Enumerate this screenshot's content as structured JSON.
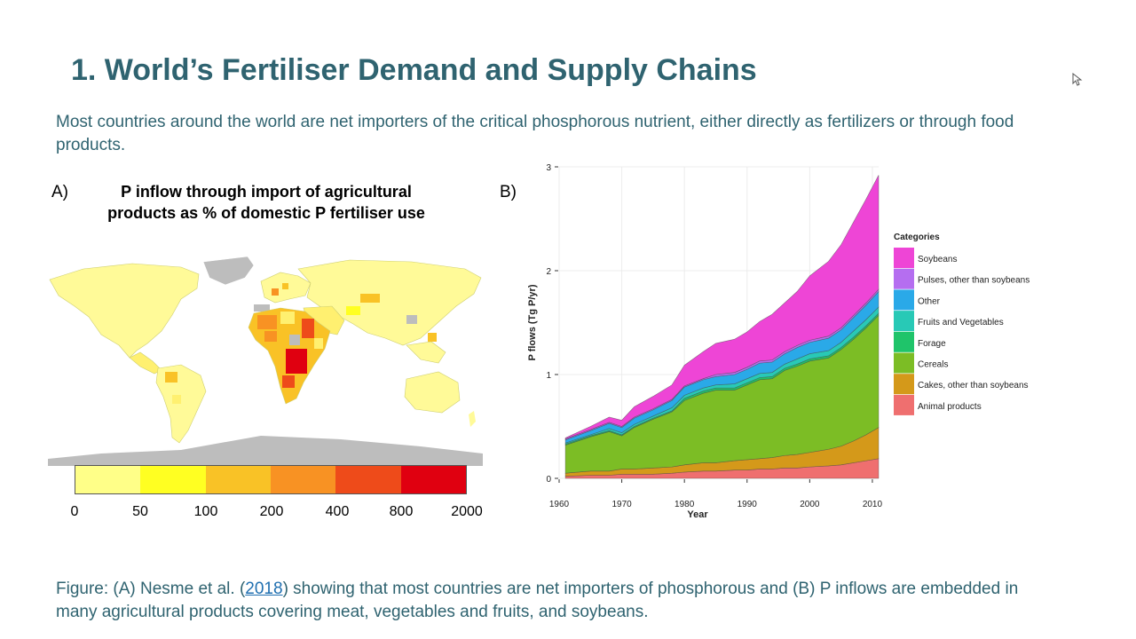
{
  "slide": {
    "title": "1. World’s Fertiliser Demand and Supply Chains",
    "intro": "Most countries around the world are net importers of the critical phosphorous nutrient, either directly as fertilizers or through food products.",
    "caption_pre": "Figure: (A) Nesme et al. (",
    "caption_link": "2018",
    "caption_post": ") showing that most countries are net importers of phosphorous and (B) P inflows are embedded in many agricultural products covering meat, vegetables and fruits, and soybeans."
  },
  "panel_a": {
    "label": "A)",
    "title_line1": "P inflow through import of agricultural",
    "title_line2": "products as % of domestic P fertiliser use",
    "legend_ticks": [
      "0",
      "50",
      "100",
      "200",
      "400",
      "800",
      "2000"
    ],
    "legend_colors": [
      "#ffff88",
      "#ffff22",
      "#f9c226",
      "#f89223",
      "#ee4b1a",
      "#e00010"
    ]
  },
  "panel_b": {
    "label": "B)"
  },
  "chart_data": {
    "type": "area",
    "stacked": true,
    "xlabel": "Year",
    "ylabel": "P flows (Tg P/yr)",
    "xlim": [
      1960,
      2011
    ],
    "ylim": [
      0,
      3
    ],
    "x_ticks": [
      "1960",
      "1970",
      "1980",
      "1990",
      "2000",
      "2010"
    ],
    "y_ticks": [
      "0",
      "1",
      "2",
      "3"
    ],
    "legend_title": "Categories",
    "legend_position": "right",
    "x": [
      1961,
      1965,
      1968,
      1970,
      1972,
      1975,
      1978,
      1980,
      1983,
      1985,
      1988,
      1990,
      1992,
      1994,
      1996,
      1998,
      2000,
      2003,
      2005,
      2007,
      2009,
      2011
    ],
    "series": [
      {
        "name": "Animal products",
        "color": "#ef6f6f",
        "values": [
          0.02,
          0.03,
          0.03,
          0.04,
          0.04,
          0.04,
          0.05,
          0.06,
          0.07,
          0.07,
          0.08,
          0.08,
          0.09,
          0.09,
          0.1,
          0.1,
          0.11,
          0.12,
          0.13,
          0.15,
          0.17,
          0.19
        ]
      },
      {
        "name": "Cakes, other than soybeans",
        "color": "#d4991a",
        "values": [
          0.03,
          0.04,
          0.04,
          0.05,
          0.05,
          0.06,
          0.06,
          0.07,
          0.08,
          0.08,
          0.09,
          0.1,
          0.1,
          0.11,
          0.12,
          0.13,
          0.14,
          0.16,
          0.18,
          0.21,
          0.25,
          0.3
        ]
      },
      {
        "name": "Cereals",
        "color": "#7cbd25",
        "values": [
          0.27,
          0.33,
          0.38,
          0.32,
          0.4,
          0.47,
          0.53,
          0.62,
          0.67,
          0.7,
          0.68,
          0.72,
          0.76,
          0.76,
          0.82,
          0.85,
          0.88,
          0.88,
          0.93,
          0.98,
          1.03,
          1.08
        ]
      },
      {
        "name": "Forage",
        "color": "#1fc46a",
        "values": [
          0.01,
          0.01,
          0.01,
          0.01,
          0.01,
          0.01,
          0.01,
          0.02,
          0.02,
          0.02,
          0.02,
          0.02,
          0.02,
          0.02,
          0.02,
          0.02,
          0.02,
          0.02,
          0.02,
          0.02,
          0.02,
          0.02
        ]
      },
      {
        "name": "Fruits and Vegetables",
        "color": "#28c9b6",
        "values": [
          0.01,
          0.01,
          0.02,
          0.02,
          0.02,
          0.02,
          0.03,
          0.03,
          0.03,
          0.03,
          0.04,
          0.04,
          0.04,
          0.04,
          0.04,
          0.05,
          0.05,
          0.05,
          0.05,
          0.06,
          0.06,
          0.06
        ]
      },
      {
        "name": "Other",
        "color": "#2aa9e8",
        "values": [
          0.03,
          0.04,
          0.05,
          0.05,
          0.06,
          0.06,
          0.07,
          0.08,
          0.08,
          0.08,
          0.09,
          0.09,
          0.1,
          0.1,
          0.1,
          0.11,
          0.11,
          0.12,
          0.12,
          0.13,
          0.14,
          0.15
        ]
      },
      {
        "name": "Pulses, other than soybeans",
        "color": "#b56ef0",
        "values": [
          0.01,
          0.01,
          0.01,
          0.01,
          0.01,
          0.01,
          0.01,
          0.01,
          0.01,
          0.02,
          0.02,
          0.02,
          0.02,
          0.02,
          0.02,
          0.02,
          0.02,
          0.02,
          0.02,
          0.02,
          0.02,
          0.02
        ]
      },
      {
        "name": "Soybeans",
        "color": "#ee45d6",
        "values": [
          0.01,
          0.03,
          0.05,
          0.06,
          0.1,
          0.12,
          0.14,
          0.2,
          0.26,
          0.3,
          0.32,
          0.34,
          0.38,
          0.44,
          0.47,
          0.52,
          0.62,
          0.72,
          0.8,
          0.9,
          1.0,
          1.1
        ]
      }
    ]
  }
}
